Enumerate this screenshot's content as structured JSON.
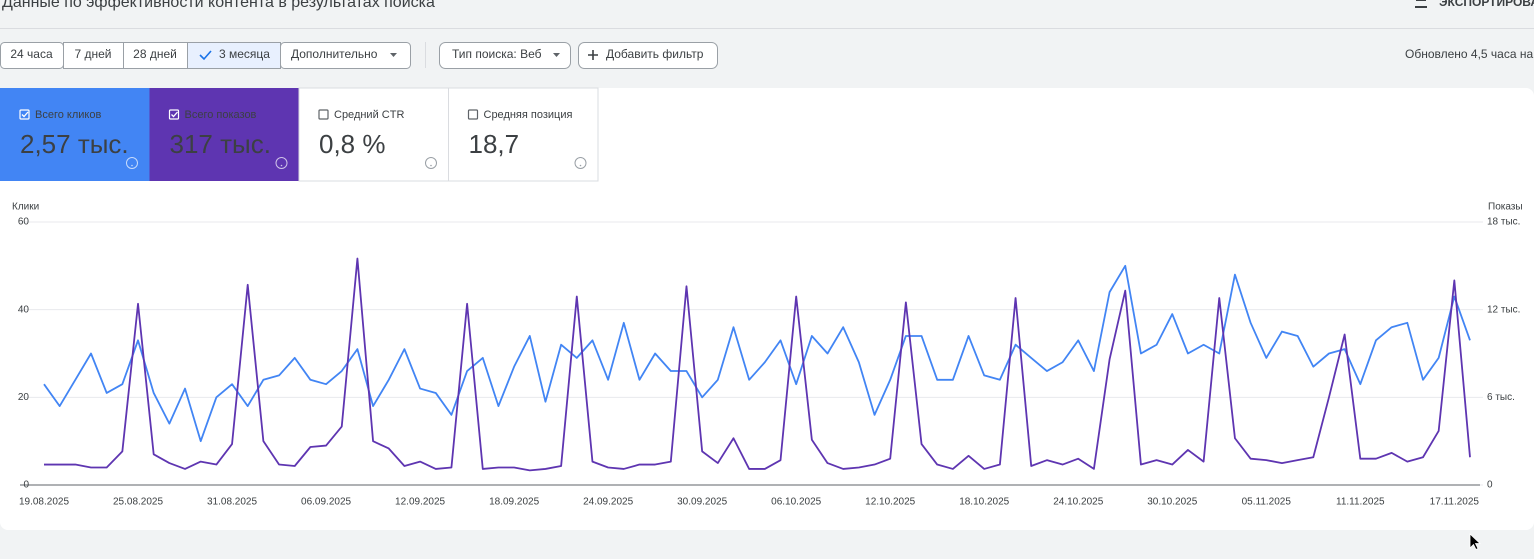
{
  "header": {
    "title": "Данные по эффективности контента в результатах поиска",
    "export": "ЭКСПОРТИРОВА"
  },
  "filters": {
    "ranges": [
      "24 часа",
      "7 дней",
      "28 дней",
      "3 месяца"
    ],
    "more": "Дополнительно",
    "search_type": "Тип поиска: Веб",
    "add_filter": "Добавить фильтр",
    "updated": "Обновлено 4,5 часа на"
  },
  "metrics": [
    {
      "label": "Всего кликов",
      "value": "2,57 тыс."
    },
    {
      "label": "Всего показов",
      "value": "317 тыс."
    },
    {
      "label": "Средний CTR",
      "value": "0,8 %"
    },
    {
      "label": "Средняя позиция",
      "value": "18,7"
    }
  ],
  "chart_data": {
    "type": "line",
    "categories": [
      "19.08.2025",
      null,
      null,
      null,
      null,
      null,
      "25.08.2025",
      null,
      null,
      null,
      null,
      null,
      "31.08.2025",
      null,
      null,
      null,
      null,
      null,
      "06.09.2025",
      null,
      null,
      null,
      null,
      null,
      "12.09.2025",
      null,
      null,
      null,
      null,
      null,
      "18.09.2025",
      null,
      null,
      null,
      null,
      null,
      "24.09.2025",
      null,
      null,
      null,
      null,
      null,
      "30.09.2025",
      null,
      null,
      null,
      null,
      null,
      "06.10.2025",
      null,
      null,
      null,
      null,
      null,
      "12.10.2025",
      null,
      null,
      null,
      null,
      null,
      "18.10.2025",
      null,
      null,
      null,
      null,
      null,
      "24.10.2025",
      null,
      null,
      null,
      null,
      null,
      "30.10.2025",
      null,
      null,
      null,
      null,
      null,
      "05.11.2025",
      null,
      null,
      null,
      null,
      null,
      "11.11.2025",
      null,
      null,
      null,
      null,
      null,
      "17.11.2025",
      null
    ],
    "series": [
      {
        "name": "Клики",
        "color": "#4285f4",
        "values": [
          23,
          18,
          24,
          30,
          21,
          23,
          33,
          21,
          14,
          22,
          10,
          20,
          23,
          18,
          24,
          25,
          29,
          24,
          23,
          26,
          31,
          18,
          24,
          31,
          22,
          21,
          16,
          26,
          29,
          18,
          27,
          34,
          19,
          32,
          29,
          33,
          24,
          37,
          24,
          30,
          26,
          26,
          20,
          24,
          36,
          24,
          28,
          33,
          23,
          34,
          30,
          36,
          28,
          16,
          24,
          34,
          34,
          24,
          24,
          34,
          25,
          24,
          32,
          29,
          26,
          28,
          33,
          26,
          44,
          50,
          30,
          32,
          39,
          30,
          32,
          30,
          48,
          37,
          29,
          35,
          34,
          27,
          30,
          31,
          23,
          33,
          36,
          37,
          24,
          29,
          43,
          33
        ]
      },
      {
        "name": "Показы",
        "color": "#5e35b1",
        "axis": "y2",
        "values": [
          1400,
          1400,
          1400,
          1200,
          1200,
          2300,
          12400,
          2100,
          1500,
          1100,
          1600,
          1400,
          2800,
          13700,
          3000,
          1400,
          1300,
          2600,
          2700,
          4000,
          15500,
          3000,
          2500,
          1300,
          1600,
          1100,
          1200,
          12400,
          1100,
          1200,
          1200,
          1000,
          1100,
          1300,
          12900,
          1600,
          1200,
          1100,
          1400,
          1400,
          1600,
          13600,
          2300,
          1500,
          3200,
          1100,
          1100,
          1700,
          12900,
          3100,
          1500,
          1100,
          1200,
          1400,
          1800,
          12500,
          2800,
          1400,
          1100,
          2000,
          1100,
          1400,
          12800,
          1300,
          1700,
          1400,
          1800,
          1100,
          8600,
          13300,
          1400,
          1700,
          1400,
          2400,
          1600,
          12800,
          3200,
          1800,
          1700,
          1500,
          1700,
          1900,
          6000,
          10300,
          1800,
          1800,
          2200,
          1600,
          1900,
          3700,
          14000,
          1900
        ]
      }
    ],
    "ylim": [
      0,
      60
    ],
    "yticks": [
      0,
      20,
      40,
      60
    ],
    "y2lim": [
      0,
      18000
    ],
    "y2ticks": [
      0,
      {
        "value": 6000,
        "label": "6 тыс."
      },
      {
        "value": 12000,
        "label": "12 тыс."
      },
      {
        "value": 18000,
        "label": "18 тыс."
      }
    ],
    "grid": true
  }
}
